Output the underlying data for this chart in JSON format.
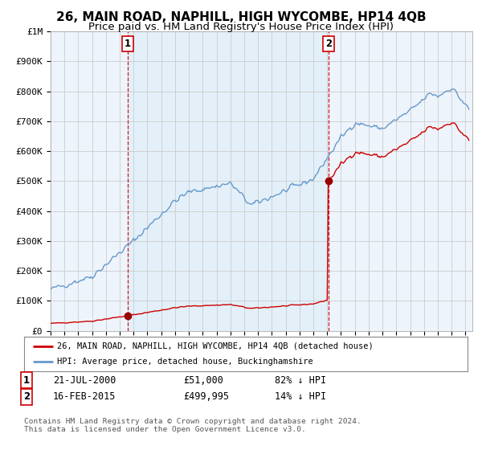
{
  "title": "26, MAIN ROAD, NAPHILL, HIGH WYCOMBE, HP14 4QB",
  "subtitle": "Price paid vs. HM Land Registry's House Price Index (HPI)",
  "ylabel_ticks": [
    "£0",
    "£100K",
    "£200K",
    "£300K",
    "£400K",
    "£500K",
    "£600K",
    "£700K",
    "£800K",
    "£900K",
    "£1M"
  ],
  "ytick_values": [
    0,
    100000,
    200000,
    300000,
    400000,
    500000,
    600000,
    700000,
    800000,
    900000,
    1000000
  ],
  "ylim": [
    0,
    1000000
  ],
  "xlim_start": 1995.0,
  "xlim_end": 2025.5,
  "sale1_date": 2000.55,
  "sale1_price": 51000,
  "sale1_label": "1",
  "sale2_date": 2015.12,
  "sale2_price": 499995,
  "sale2_label": "2",
  "sale1_info": "21-JUL-2000",
  "sale1_amount": "£51,000",
  "sale1_hpi": "82% ↓ HPI",
  "sale2_info": "16-FEB-2015",
  "sale2_amount": "£499,995",
  "sale2_hpi": "14% ↓ HPI",
  "legend_label1": "26, MAIN ROAD, NAPHILL, HIGH WYCOMBE, HP14 4QB (detached house)",
  "legend_label2": "HPI: Average price, detached house, Buckinghamshire",
  "footer": "Contains HM Land Registry data © Crown copyright and database right 2024.\nThis data is licensed under the Open Government Licence v3.0.",
  "line_color_red": "#cc0000",
  "line_color_blue": "#6699cc",
  "vline_color": "#cc0000",
  "shade_color": "#ddeeff",
  "background_color": "#ffffff",
  "grid_color": "#cccccc",
  "title_fontsize": 11,
  "subtitle_fontsize": 9.5,
  "tick_fontsize": 8,
  "hpi_seed": 42
}
